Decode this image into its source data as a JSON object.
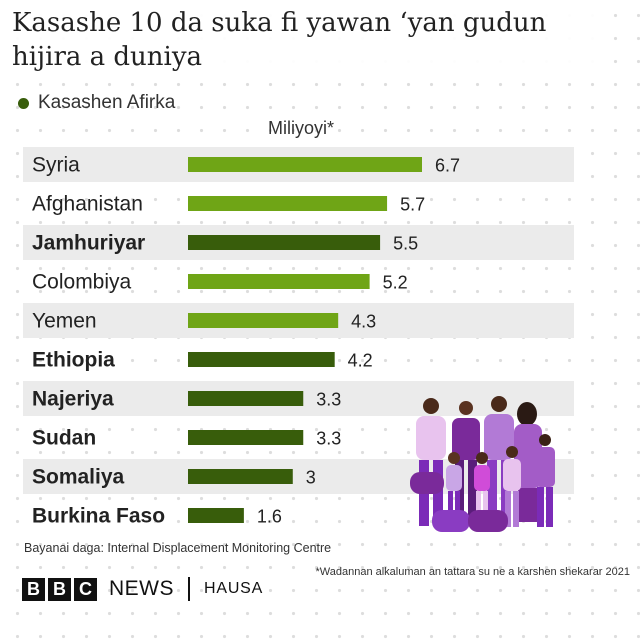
{
  "title": "Kasashe 10 da suka fi yawan ‘yan gudun hijira a duniya",
  "legend": {
    "label": "Kasashen Afirka",
    "color": "#385d0b"
  },
  "unit_label": "Miliyoyi*",
  "colors": {
    "non_african": "#6fa516",
    "african": "#385d0b",
    "row_band": "#ebebeb"
  },
  "chart_data": {
    "type": "bar",
    "orientation": "horizontal",
    "title": "Kasashe 10 da suka fi yawan ‘yan gudun hijira a duniya",
    "xlabel": "Miliyoyi*",
    "ylabel": "",
    "xlim": [
      0,
      6.7
    ],
    "grid": false,
    "legend_position": "top-left",
    "categories": [
      "Syria",
      "Afghanistan",
      "Jamhuriyar",
      "Colombiya",
      "Yemen",
      "Ethiopia",
      "Najeriya",
      "Sudan",
      "Somaliya",
      "Burkina Faso"
    ],
    "values": [
      6.7,
      5.7,
      5.5,
      5.2,
      4.3,
      4.2,
      3.3,
      3.3,
      3,
      1.6
    ],
    "value_labels": [
      "6.7",
      "5.7",
      "5.5",
      "5.2",
      "4.3",
      "4.2",
      "3.3",
      "3.3",
      "3",
      "1.6"
    ],
    "african": [
      false,
      false,
      true,
      false,
      false,
      true,
      true,
      true,
      true,
      true
    ]
  },
  "source": "Bayanai daga: Internal Displacement Monitoring Centre",
  "footnote": "*Wadannan alkaluman an tattara su ne a karshen shekarar 2021",
  "brand": {
    "letters": [
      "B",
      "B",
      "C"
    ],
    "news": "NEWS",
    "service": "HAUSA"
  }
}
